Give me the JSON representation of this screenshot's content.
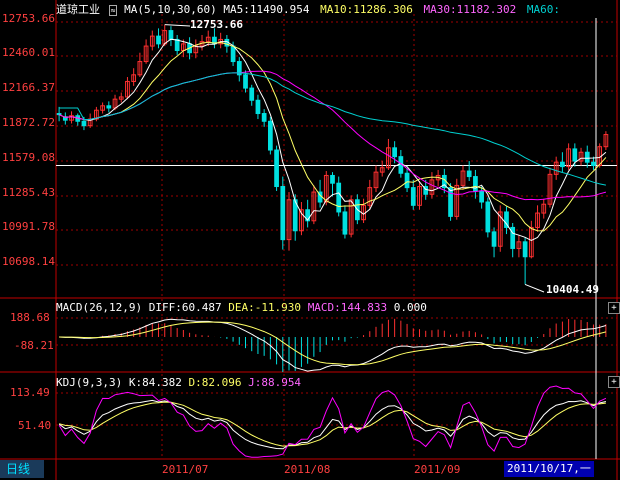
{
  "header": {
    "title": "道琼工业",
    "ma_label": "MA(5,10,30,60)",
    "ma5": "MA5:11490.954",
    "ma10": "MA10:11286.306",
    "ma30": "MA30:11182.302",
    "ma60": "MA60:"
  },
  "price_axis": [
    "12753.66",
    "12460.01",
    "12166.37",
    "11872.72",
    "11579.08",
    "11285.43",
    "10991.78",
    "10698.14"
  ],
  "price_high_label": "12753.66",
  "price_low_label": "10404.49",
  "macd": {
    "label": "MACD(26,12,9)",
    "diff": "DIFF:60.487",
    "dea": "DEA:-11.930",
    "macd": "MACD:144.833",
    "zero": "0.000",
    "axis": [
      "188.68",
      "-88.21"
    ]
  },
  "kdj": {
    "label": "KDJ(9,3,3)",
    "k": "K:84.382",
    "d": "D:82.096",
    "j": "J:88.954",
    "axis": [
      "113.49",
      "51.40"
    ]
  },
  "x_axis": [
    "2011/07",
    "2011/08",
    "2011/09"
  ],
  "period_tab": "日线",
  "cursor_date": "2011/10/17,一",
  "colors": {
    "up": "#ff3030",
    "down": "#00e0e0",
    "ma5": "#ffffff",
    "ma10": "#ffff66",
    "ma30": "#ff00ff",
    "ma60": "#00d0d0",
    "axis": "#c00000"
  },
  "chart_data": {
    "type": "candlestick",
    "ylim": [
      10300,
      12850
    ],
    "candles": [
      [
        11950,
        11940,
        12010,
        11880
      ],
      [
        11920,
        11890,
        11960,
        11850
      ],
      [
        11890,
        11930,
        11970,
        11860
      ],
      [
        11930,
        11880,
        11950,
        11840
      ],
      [
        11880,
        11840,
        11920,
        11800
      ],
      [
        11840,
        11900,
        11950,
        11820
      ],
      [
        11900,
        11980,
        12010,
        11880
      ],
      [
        11980,
        12020,
        12050,
        11950
      ],
      [
        12020,
        12000,
        12060,
        11960
      ],
      [
        12000,
        12080,
        12120,
        11980
      ],
      [
        12080,
        12100,
        12140,
        12050
      ],
      [
        12100,
        12240,
        12280,
        12080
      ],
      [
        12240,
        12300,
        12360,
        12200
      ],
      [
        12300,
        12420,
        12500,
        12280
      ],
      [
        12420,
        12560,
        12620,
        12400
      ],
      [
        12560,
        12650,
        12700,
        12520
      ],
      [
        12650,
        12580,
        12720,
        12540
      ],
      [
        12580,
        12700,
        12753.66,
        12560
      ],
      [
        12700,
        12620,
        12740,
        12560
      ],
      [
        12620,
        12520,
        12660,
        12480
      ],
      [
        12520,
        12580,
        12620,
        12460
      ],
      [
        12580,
        12500,
        12640,
        12440
      ],
      [
        12500,
        12560,
        12620,
        12450
      ],
      [
        12560,
        12600,
        12660,
        12520
      ],
      [
        12600,
        12640,
        12700,
        12560
      ],
      [
        12640,
        12580,
        12720,
        12540
      ],
      [
        12580,
        12620,
        12680,
        12540
      ],
      [
        12620,
        12560,
        12660,
        12500
      ],
      [
        12560,
        12420,
        12600,
        12380
      ],
      [
        12420,
        12300,
        12460,
        12240
      ],
      [
        12300,
        12180,
        12340,
        12140
      ],
      [
        12180,
        12070,
        12210,
        12020
      ],
      [
        12070,
        11950,
        12120,
        11900
      ],
      [
        11950,
        11880,
        11990,
        11830
      ],
      [
        11880,
        11620,
        11920,
        11580
      ],
      [
        11620,
        11290,
        11660,
        11250
      ],
      [
        11290,
        10810,
        11380,
        10720
      ],
      [
        10810,
        11170,
        11240,
        10710
      ],
      [
        11170,
        10890,
        11220,
        10800
      ],
      [
        10890,
        11080,
        11150,
        10850
      ],
      [
        11080,
        10980,
        11170,
        10920
      ],
      [
        10980,
        11240,
        11300,
        10950
      ],
      [
        11240,
        11150,
        11350,
        11100
      ],
      [
        11150,
        11390,
        11430,
        11120
      ],
      [
        11390,
        11320,
        11420,
        11200
      ],
      [
        11320,
        11060,
        11380,
        11020
      ],
      [
        11060,
        10860,
        11120,
        10820
      ],
      [
        10860,
        11170,
        11210,
        10830
      ],
      [
        11170,
        10990,
        11220,
        10950
      ],
      [
        10990,
        11120,
        11180,
        10960
      ],
      [
        11120,
        11280,
        11350,
        11080
      ],
      [
        11280,
        11420,
        11480,
        11240
      ],
      [
        11420,
        11460,
        11520,
        11380
      ],
      [
        11460,
        11640,
        11720,
        11440
      ],
      [
        11640,
        11560,
        11700,
        11500
      ],
      [
        11560,
        11410,
        11620,
        11370
      ],
      [
        11410,
        11280,
        11460,
        11240
      ],
      [
        11280,
        11120,
        11350,
        11080
      ],
      [
        11120,
        11290,
        11340,
        11080
      ],
      [
        11290,
        11220,
        11350,
        11170
      ],
      [
        11220,
        11350,
        11420,
        11180
      ],
      [
        11350,
        11390,
        11440,
        11290
      ],
      [
        11390,
        11280,
        11450,
        11230
      ],
      [
        11280,
        11020,
        11320,
        10980
      ],
      [
        11020,
        11300,
        11360,
        10990
      ],
      [
        11300,
        11430,
        11480,
        11260
      ],
      [
        11430,
        11380,
        11520,
        11340
      ],
      [
        11380,
        11250,
        11440,
        11180
      ],
      [
        11250,
        11150,
        11290,
        11090
      ],
      [
        11150,
        10880,
        11190,
        10830
      ],
      [
        10880,
        10750,
        10920,
        10650
      ],
      [
        10750,
        11060,
        11120,
        10700
      ],
      [
        11060,
        10920,
        11110,
        10860
      ],
      [
        10920,
        10730,
        10960,
        10650
      ],
      [
        10730,
        10790,
        10850,
        10650
      ],
      [
        10790,
        10655,
        10830,
        10404.49
      ],
      [
        10655,
        10920,
        10980,
        10640
      ],
      [
        10920,
        11050,
        11120,
        10880
      ],
      [
        11050,
        11130,
        11180,
        11000
      ],
      [
        11130,
        11400,
        11460,
        11100
      ],
      [
        11400,
        11510,
        11560,
        11350
      ],
      [
        11510,
        11470,
        11600,
        11420
      ],
      [
        11470,
        11630,
        11680,
        11440
      ],
      [
        11630,
        11520,
        11680,
        11470
      ],
      [
        11520,
        11600,
        11640,
        11480
      ],
      [
        11600,
        11510,
        11660,
        11460
      ],
      [
        11510,
        11480,
        11560,
        11440
      ],
      [
        11480,
        11650,
        11680,
        11460
      ],
      [
        11650,
        11760,
        11790,
        11620
      ]
    ],
    "hline": 11480
  }
}
